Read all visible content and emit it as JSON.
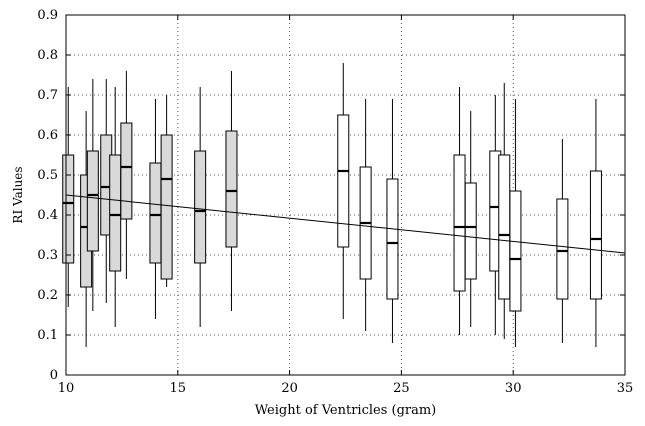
{
  "chart_data": {
    "type": "box",
    "title": "",
    "xlabel": "Weight of Ventricles (gram)",
    "ylabel": "RI Values",
    "xlim": [
      10,
      35
    ],
    "ylim": [
      0,
      0.9
    ],
    "x_ticks": [
      "10",
      "15",
      "20",
      "25",
      "30",
      "35"
    ],
    "y_ticks": [
      "0",
      "0.1",
      "0.2",
      "0.3",
      "0.4",
      "0.5",
      "0.6",
      "0.7",
      "0.8",
      "0.9"
    ],
    "x_tick_values": [
      10,
      15,
      20,
      25,
      30,
      35
    ],
    "y_tick_values": [
      0,
      0.1,
      0.2,
      0.3,
      0.4,
      0.5,
      0.6,
      0.7,
      0.8,
      0.9
    ],
    "grid": true,
    "colors": {
      "gray_box": "#d9d9d9",
      "white_box": "#ffffff",
      "line": "#000000",
      "grid": "#555555"
    },
    "trend_line": {
      "x": [
        10,
        35
      ],
      "y": [
        0.45,
        0.305
      ]
    },
    "boxes": [
      {
        "x": 10.1,
        "whisker_low": 0.17,
        "q1": 0.28,
        "median": 0.43,
        "q3": 0.55,
        "whisker_high": 0.72,
        "fill": "gray"
      },
      {
        "x": 10.9,
        "whisker_low": 0.07,
        "q1": 0.22,
        "median": 0.37,
        "q3": 0.5,
        "whisker_high": 0.66,
        "fill": "gray"
      },
      {
        "x": 11.2,
        "whisker_low": 0.16,
        "q1": 0.31,
        "median": 0.45,
        "q3": 0.56,
        "whisker_high": 0.74,
        "fill": "gray"
      },
      {
        "x": 11.8,
        "whisker_low": 0.18,
        "q1": 0.35,
        "median": 0.47,
        "q3": 0.6,
        "whisker_high": 0.74,
        "fill": "gray"
      },
      {
        "x": 12.2,
        "whisker_low": 0.12,
        "q1": 0.26,
        "median": 0.4,
        "q3": 0.55,
        "whisker_high": 0.72,
        "fill": "gray"
      },
      {
        "x": 12.7,
        "whisker_low": 0.24,
        "q1": 0.39,
        "median": 0.52,
        "q3": 0.63,
        "whisker_high": 0.76,
        "fill": "gray"
      },
      {
        "x": 14.0,
        "whisker_low": 0.14,
        "q1": 0.28,
        "median": 0.4,
        "q3": 0.53,
        "whisker_high": 0.69,
        "fill": "gray"
      },
      {
        "x": 14.5,
        "whisker_low": 0.22,
        "q1": 0.24,
        "median": 0.49,
        "q3": 0.6,
        "whisker_high": 0.7,
        "fill": "gray"
      },
      {
        "x": 16.0,
        "whisker_low": 0.12,
        "q1": 0.28,
        "median": 0.41,
        "q3": 0.56,
        "whisker_high": 0.72,
        "fill": "gray"
      },
      {
        "x": 17.4,
        "whisker_low": 0.16,
        "q1": 0.32,
        "median": 0.46,
        "q3": 0.61,
        "whisker_high": 0.76,
        "fill": "gray"
      },
      {
        "x": 22.4,
        "whisker_low": 0.14,
        "q1": 0.32,
        "median": 0.51,
        "q3": 0.65,
        "whisker_high": 0.78,
        "fill": "white"
      },
      {
        "x": 23.4,
        "whisker_low": 0.11,
        "q1": 0.24,
        "median": 0.38,
        "q3": 0.52,
        "whisker_high": 0.69,
        "fill": "white"
      },
      {
        "x": 24.6,
        "whisker_low": 0.08,
        "q1": 0.19,
        "median": 0.33,
        "q3": 0.49,
        "whisker_high": 0.69,
        "fill": "white"
      },
      {
        "x": 27.6,
        "whisker_low": 0.1,
        "q1": 0.21,
        "median": 0.37,
        "q3": 0.55,
        "whisker_high": 0.72,
        "fill": "white"
      },
      {
        "x": 28.1,
        "whisker_low": 0.12,
        "q1": 0.24,
        "median": 0.37,
        "q3": 0.48,
        "whisker_high": 0.66,
        "fill": "white"
      },
      {
        "x": 29.2,
        "whisker_low": 0.1,
        "q1": 0.26,
        "median": 0.42,
        "q3": 0.56,
        "whisker_high": 0.7,
        "fill": "white"
      },
      {
        "x": 29.6,
        "whisker_low": 0.09,
        "q1": 0.19,
        "median": 0.35,
        "q3": 0.55,
        "whisker_high": 0.73,
        "fill": "white"
      },
      {
        "x": 30.1,
        "whisker_low": 0.07,
        "q1": 0.16,
        "median": 0.29,
        "q3": 0.46,
        "whisker_high": 0.69,
        "fill": "white"
      },
      {
        "x": 32.2,
        "whisker_low": 0.08,
        "q1": 0.19,
        "median": 0.31,
        "q3": 0.44,
        "whisker_high": 0.59,
        "fill": "white"
      },
      {
        "x": 33.7,
        "whisker_low": 0.07,
        "q1": 0.19,
        "median": 0.34,
        "q3": 0.51,
        "whisker_high": 0.69,
        "fill": "white"
      }
    ]
  }
}
